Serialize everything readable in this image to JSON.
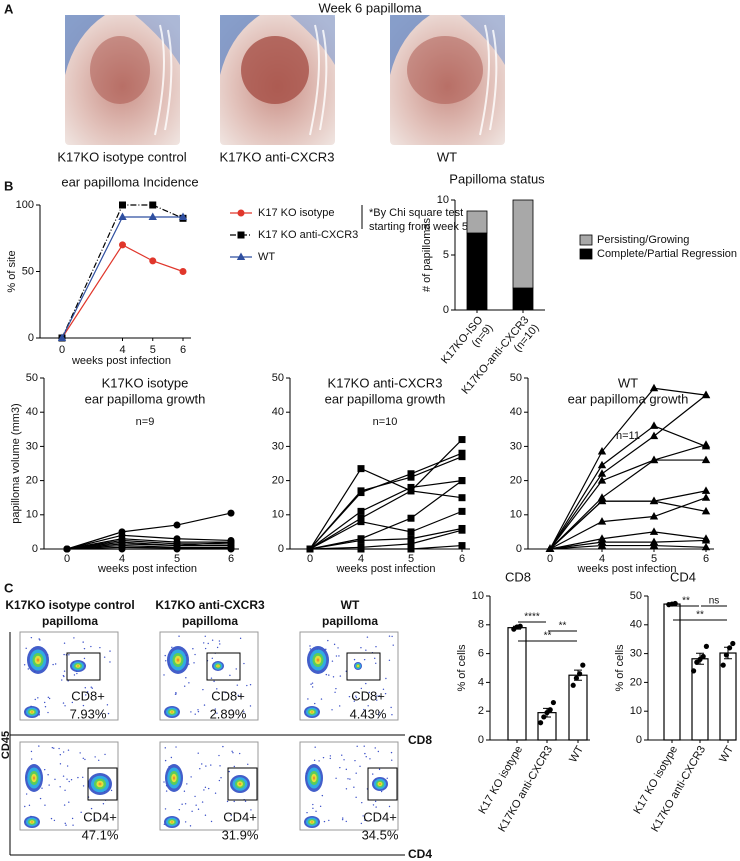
{
  "panels": [
    "A",
    "B",
    "C"
  ],
  "photos": {
    "title": "Week 6 papilloma",
    "labels": [
      "K17KO isotype control",
      "K17KO anti-CXCR3",
      "WT"
    ]
  },
  "chart_data": [
    {
      "type": "line",
      "title": "ear papilloma Incidence",
      "xlabel": "weeks post infection",
      "ylabel": "% of site",
      "categories": [
        "0",
        "4",
        "5",
        "6"
      ],
      "ylim": [
        0,
        100
      ],
      "yticks": [
        0,
        50,
        100
      ],
      "annotation": [
        "*By Chi square test",
        "starting from week 5"
      ],
      "series": [
        {
          "name": "K17 KO isotype",
          "color": "#e0362b",
          "marker": "circle",
          "values": [
            0,
            70,
            58,
            50
          ]
        },
        {
          "name": "K17 KO anti-CXCR3",
          "color": "#000000",
          "marker": "square",
          "dash": "6 2 1 2",
          "values": [
            0,
            100,
            100,
            90
          ]
        },
        {
          "name": "WT",
          "color": "#2f4fa0",
          "marker": "triangle",
          "values": [
            0,
            91,
            91,
            91
          ]
        }
      ]
    },
    {
      "type": "stacked_bar",
      "title": "Papilloma status",
      "ylabel": "# of papillomas",
      "categories": [
        "K17KO-ISO",
        "K17KO-anti-CXCR3"
      ],
      "category_notes": [
        "(n=9)",
        "(n=10)"
      ],
      "ylim": [
        0,
        10
      ],
      "yticks": [
        0,
        5,
        10
      ],
      "series": [
        {
          "name": "Complete/Partial Regression",
          "color": "#000000",
          "values": [
            7,
            2
          ]
        },
        {
          "name": "Persisting/Growing",
          "color": "#a8a8a8",
          "values": [
            2,
            8
          ]
        }
      ]
    },
    {
      "type": "line",
      "title": "K17KO isotype",
      "subtitle": "ear papilloma growth",
      "annotation": "n=9",
      "xlabel": "weeks post infection",
      "ylabel": "papilloma volume (mm3)",
      "color": "#000000",
      "marker": "circle",
      "categories": [
        "0",
        "4",
        "5",
        "6"
      ],
      "ylim": [
        0,
        50
      ],
      "yticks": [
        0,
        10,
        20,
        30,
        40,
        50
      ],
      "series": [
        {
          "values": [
            0,
            5,
            7,
            10.5
          ]
        },
        {
          "values": [
            0,
            4,
            3,
            2.5
          ]
        },
        {
          "values": [
            0,
            3,
            2,
            2
          ]
        },
        {
          "values": [
            0,
            2.5,
            1.5,
            1.5
          ]
        },
        {
          "values": [
            0,
            2,
            1,
            1
          ]
        },
        {
          "values": [
            0,
            1.5,
            1,
            2
          ]
        },
        {
          "values": [
            0,
            1,
            0.5,
            0.5
          ]
        },
        {
          "values": [
            0,
            0.5,
            0.3,
            0.3
          ]
        },
        {
          "values": [
            0,
            0,
            0,
            0
          ]
        }
      ]
    },
    {
      "type": "line",
      "title": "K17KO anti-CXCR3",
      "subtitle": "ear papilloma growth",
      "annotation": "n=10",
      "xlabel": "weeks post infection",
      "color": "#000000",
      "marker": "square",
      "categories": [
        "0",
        "4",
        "5",
        "6"
      ],
      "ylim": [
        0,
        50
      ],
      "yticks": [
        0,
        10,
        20,
        30,
        40,
        50
      ],
      "series": [
        {
          "values": [
            0,
            23.5,
            17,
            32
          ]
        },
        {
          "values": [
            0,
            17,
            21,
            27
          ]
        },
        {
          "values": [
            0,
            16.5,
            22,
            28
          ]
        },
        {
          "values": [
            0,
            11,
            18,
            20
          ]
        },
        {
          "values": [
            0,
            9,
            17,
            15
          ]
        },
        {
          "values": [
            0,
            8,
            5,
            11
          ]
        },
        {
          "values": [
            0,
            3,
            9,
            20
          ]
        },
        {
          "values": [
            0,
            2.5,
            3,
            6
          ]
        },
        {
          "values": [
            0,
            0.5,
            1.5,
            5.5
          ]
        },
        {
          "values": [
            0,
            0,
            0,
            1
          ]
        }
      ]
    },
    {
      "type": "line",
      "title": "WT",
      "subtitle": "ear papilloma growth",
      "annotation": "n=11",
      "xlabel": "weeks post infection",
      "color": "#000000",
      "marker": "triangle",
      "categories": [
        "0",
        "4",
        "5",
        "6"
      ],
      "ylim": [
        0,
        50
      ],
      "yticks": [
        0,
        10,
        20,
        30,
        40,
        50
      ],
      "series": [
        {
          "values": [
            0,
            28.5,
            47,
            45
          ]
        },
        {
          "values": [
            0,
            24.5,
            36,
            30
          ]
        },
        {
          "values": [
            0,
            22,
            33,
            45
          ]
        },
        {
          "values": [
            0,
            20,
            26,
            30.5
          ]
        },
        {
          "values": [
            0,
            15,
            26,
            26
          ]
        },
        {
          "values": [
            0,
            14,
            14,
            17
          ]
        },
        {
          "values": [
            0,
            14,
            14,
            11
          ]
        },
        {
          "values": [
            0,
            8,
            9.5,
            15
          ]
        },
        {
          "values": [
            0,
            3,
            5,
            3
          ]
        },
        {
          "values": [
            0,
            2,
            2,
            2.5
          ]
        },
        {
          "values": [
            0,
            1,
            1,
            0.5
          ]
        }
      ]
    },
    {
      "type": "bar",
      "title": "CD8",
      "ylabel": "% of cells",
      "categories": [
        "K17 KO isotype",
        "K17KO anti-CXCR3",
        "WT"
      ],
      "values": [
        7.8,
        1.9,
        4.5
      ],
      "errors": [
        0.1,
        0.3,
        0.35
      ],
      "points": [
        [
          7.7,
          7.85,
          7.9
        ],
        [
          1.2,
          1.6,
          1.9,
          2.1,
          2.6
        ],
        [
          3.8,
          4.3,
          4.6,
          5.2
        ]
      ],
      "significance": [
        "****",
        "**",
        "**"
      ],
      "ylim": [
        0,
        10
      ],
      "yticks": [
        0,
        2,
        4,
        6,
        8,
        10
      ]
    },
    {
      "type": "bar",
      "title": "CD4",
      "ylabel": "% of cells",
      "categories": [
        "K17 KO isotype",
        "K17KO anti-CXCR3",
        "WT"
      ],
      "values": [
        47.2,
        28.2,
        30.2
      ],
      "errors": [
        0.2,
        1.9,
        2.0
      ],
      "points": [
        [
          47,
          47.2,
          47.4
        ],
        [
          24,
          27,
          28,
          29,
          32.5
        ],
        [
          26,
          29.5,
          32,
          33.5
        ]
      ],
      "significance": [
        "**",
        "ns",
        "**"
      ],
      "ylim": [
        0,
        50
      ],
      "yticks": [
        0,
        10,
        20,
        30,
        40,
        50
      ]
    }
  ],
  "flow": {
    "y_label": "CD45",
    "row_labels": [
      "CD8",
      "CD4"
    ],
    "columns": [
      {
        "title": [
          "K17KO isotype control",
          "papilloma"
        ],
        "cd8": [
          "CD8+",
          "7.93%"
        ],
        "cd4": [
          "CD4+",
          "47.1%"
        ]
      },
      {
        "title": [
          "K17KO anti-CXCR3",
          "papilloma"
        ],
        "cd8": [
          "CD8+",
          "2.89%"
        ],
        "cd4": [
          "CD4+",
          "31.9%"
        ]
      },
      {
        "title": [
          "WT",
          "papilloma"
        ],
        "cd8": [
          "CD8+",
          "4.43%"
        ],
        "cd4": [
          "CD4+",
          "34.5%"
        ]
      }
    ]
  }
}
